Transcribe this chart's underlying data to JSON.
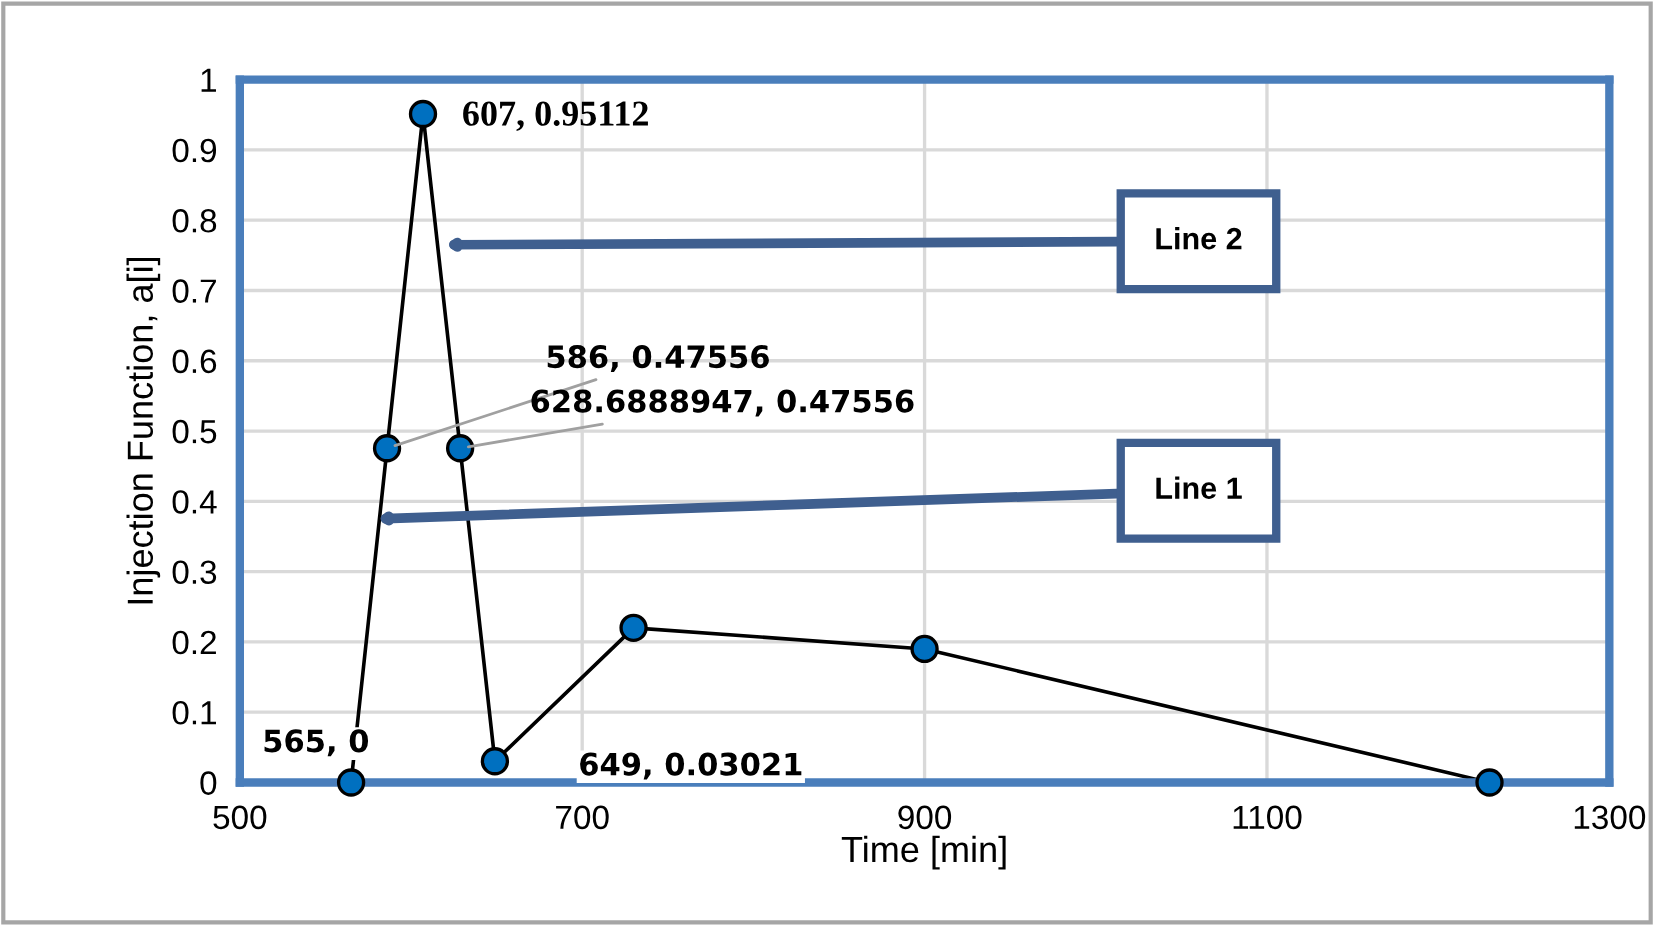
{
  "chart_data": {
    "type": "line",
    "xlabel": "Time [min]",
    "ylabel": "Injection Function, a[i]",
    "x": [
      565,
      586,
      607,
      628.6888947,
      649,
      730,
      900,
      1230
    ],
    "series": [
      {
        "color": "#0070c0",
        "values": [
          0,
          0.47556,
          0.95112,
          0.47556,
          0.03021,
          0.22,
          0.19,
          0
        ]
      }
    ],
    "value_labels": [
      "565, 0",
      "586, 0.47556",
      "607, 0.95112",
      "628.6888947, 0.47556",
      "649, 0.03021",
      null,
      null,
      null
    ],
    "annotations": [
      "Line 2",
      "Line 1"
    ],
    "xlim": [
      500,
      1300
    ],
    "xticks": [
      500,
      700,
      900,
      1100,
      1300
    ],
    "ylim": [
      0,
      1
    ],
    "yticks": [
      0,
      0.1,
      0.2,
      0.3,
      0.4,
      0.5,
      0.6,
      0.7,
      0.8,
      0.9,
      1
    ],
    "grid": true,
    "marker": "circle",
    "line_style": "solid"
  }
}
